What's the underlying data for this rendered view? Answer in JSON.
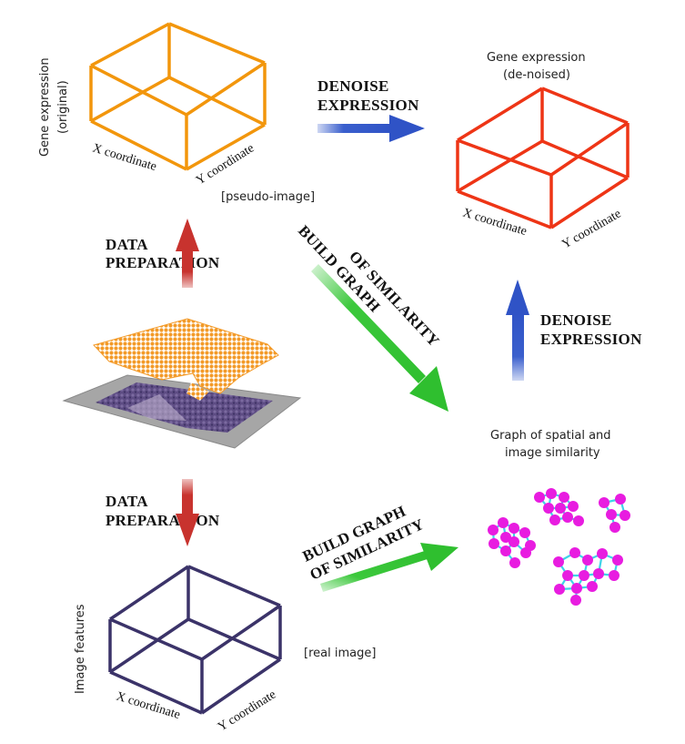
{
  "top_left": {
    "axis_vertical_line1": "Gene expression",
    "axis_vertical_line2": "(original)",
    "x_label": "X coordinate",
    "y_label": "Y coordinate",
    "note": "[pseudo-image]",
    "box_color": "#f2960c"
  },
  "top_right": {
    "title_line1": "Gene expression",
    "title_line2": "(de-noised)",
    "x_label": "X coordinate",
    "y_label": "Y coordinate",
    "box_color": "#ee3516"
  },
  "bottom_left": {
    "axis_vertical": "Image features",
    "x_label": "X coordinate",
    "y_label": "Y coordinate",
    "note": "[real image]",
    "box_color": "#3b3369"
  },
  "graph": {
    "title_line1": "Graph of spatial and",
    "title_line2": "image similarity",
    "node_color": "#e81ce0",
    "edge_color": "#3fd3e8"
  },
  "arrows": {
    "denoise_top_line1": "DENOISE",
    "denoise_top_line2": "EXPRESSION",
    "denoise_right_line1": "DENOISE",
    "denoise_right_line2": "EXPRESSION",
    "prep_top_line1": "DATA",
    "prep_top_line2": "PREPARATION",
    "prep_bottom_line1": "DATA",
    "prep_bottom_line2": "PREPARATION",
    "graph_diag_line1": "BUILD GRAPH",
    "graph_diag_line2": "OF SIMILARITY",
    "graph_bottom_line1": "BUILD GRAPH",
    "graph_bottom_line2": "OF SIMILARITY",
    "blue": "#3a5fcd",
    "red": "#c8332e",
    "green": "#3cc83c"
  },
  "tissue": {
    "spot_color": "#f39a28",
    "slide_color": "#9a9a9a",
    "stain_color": "#5a4a80"
  }
}
